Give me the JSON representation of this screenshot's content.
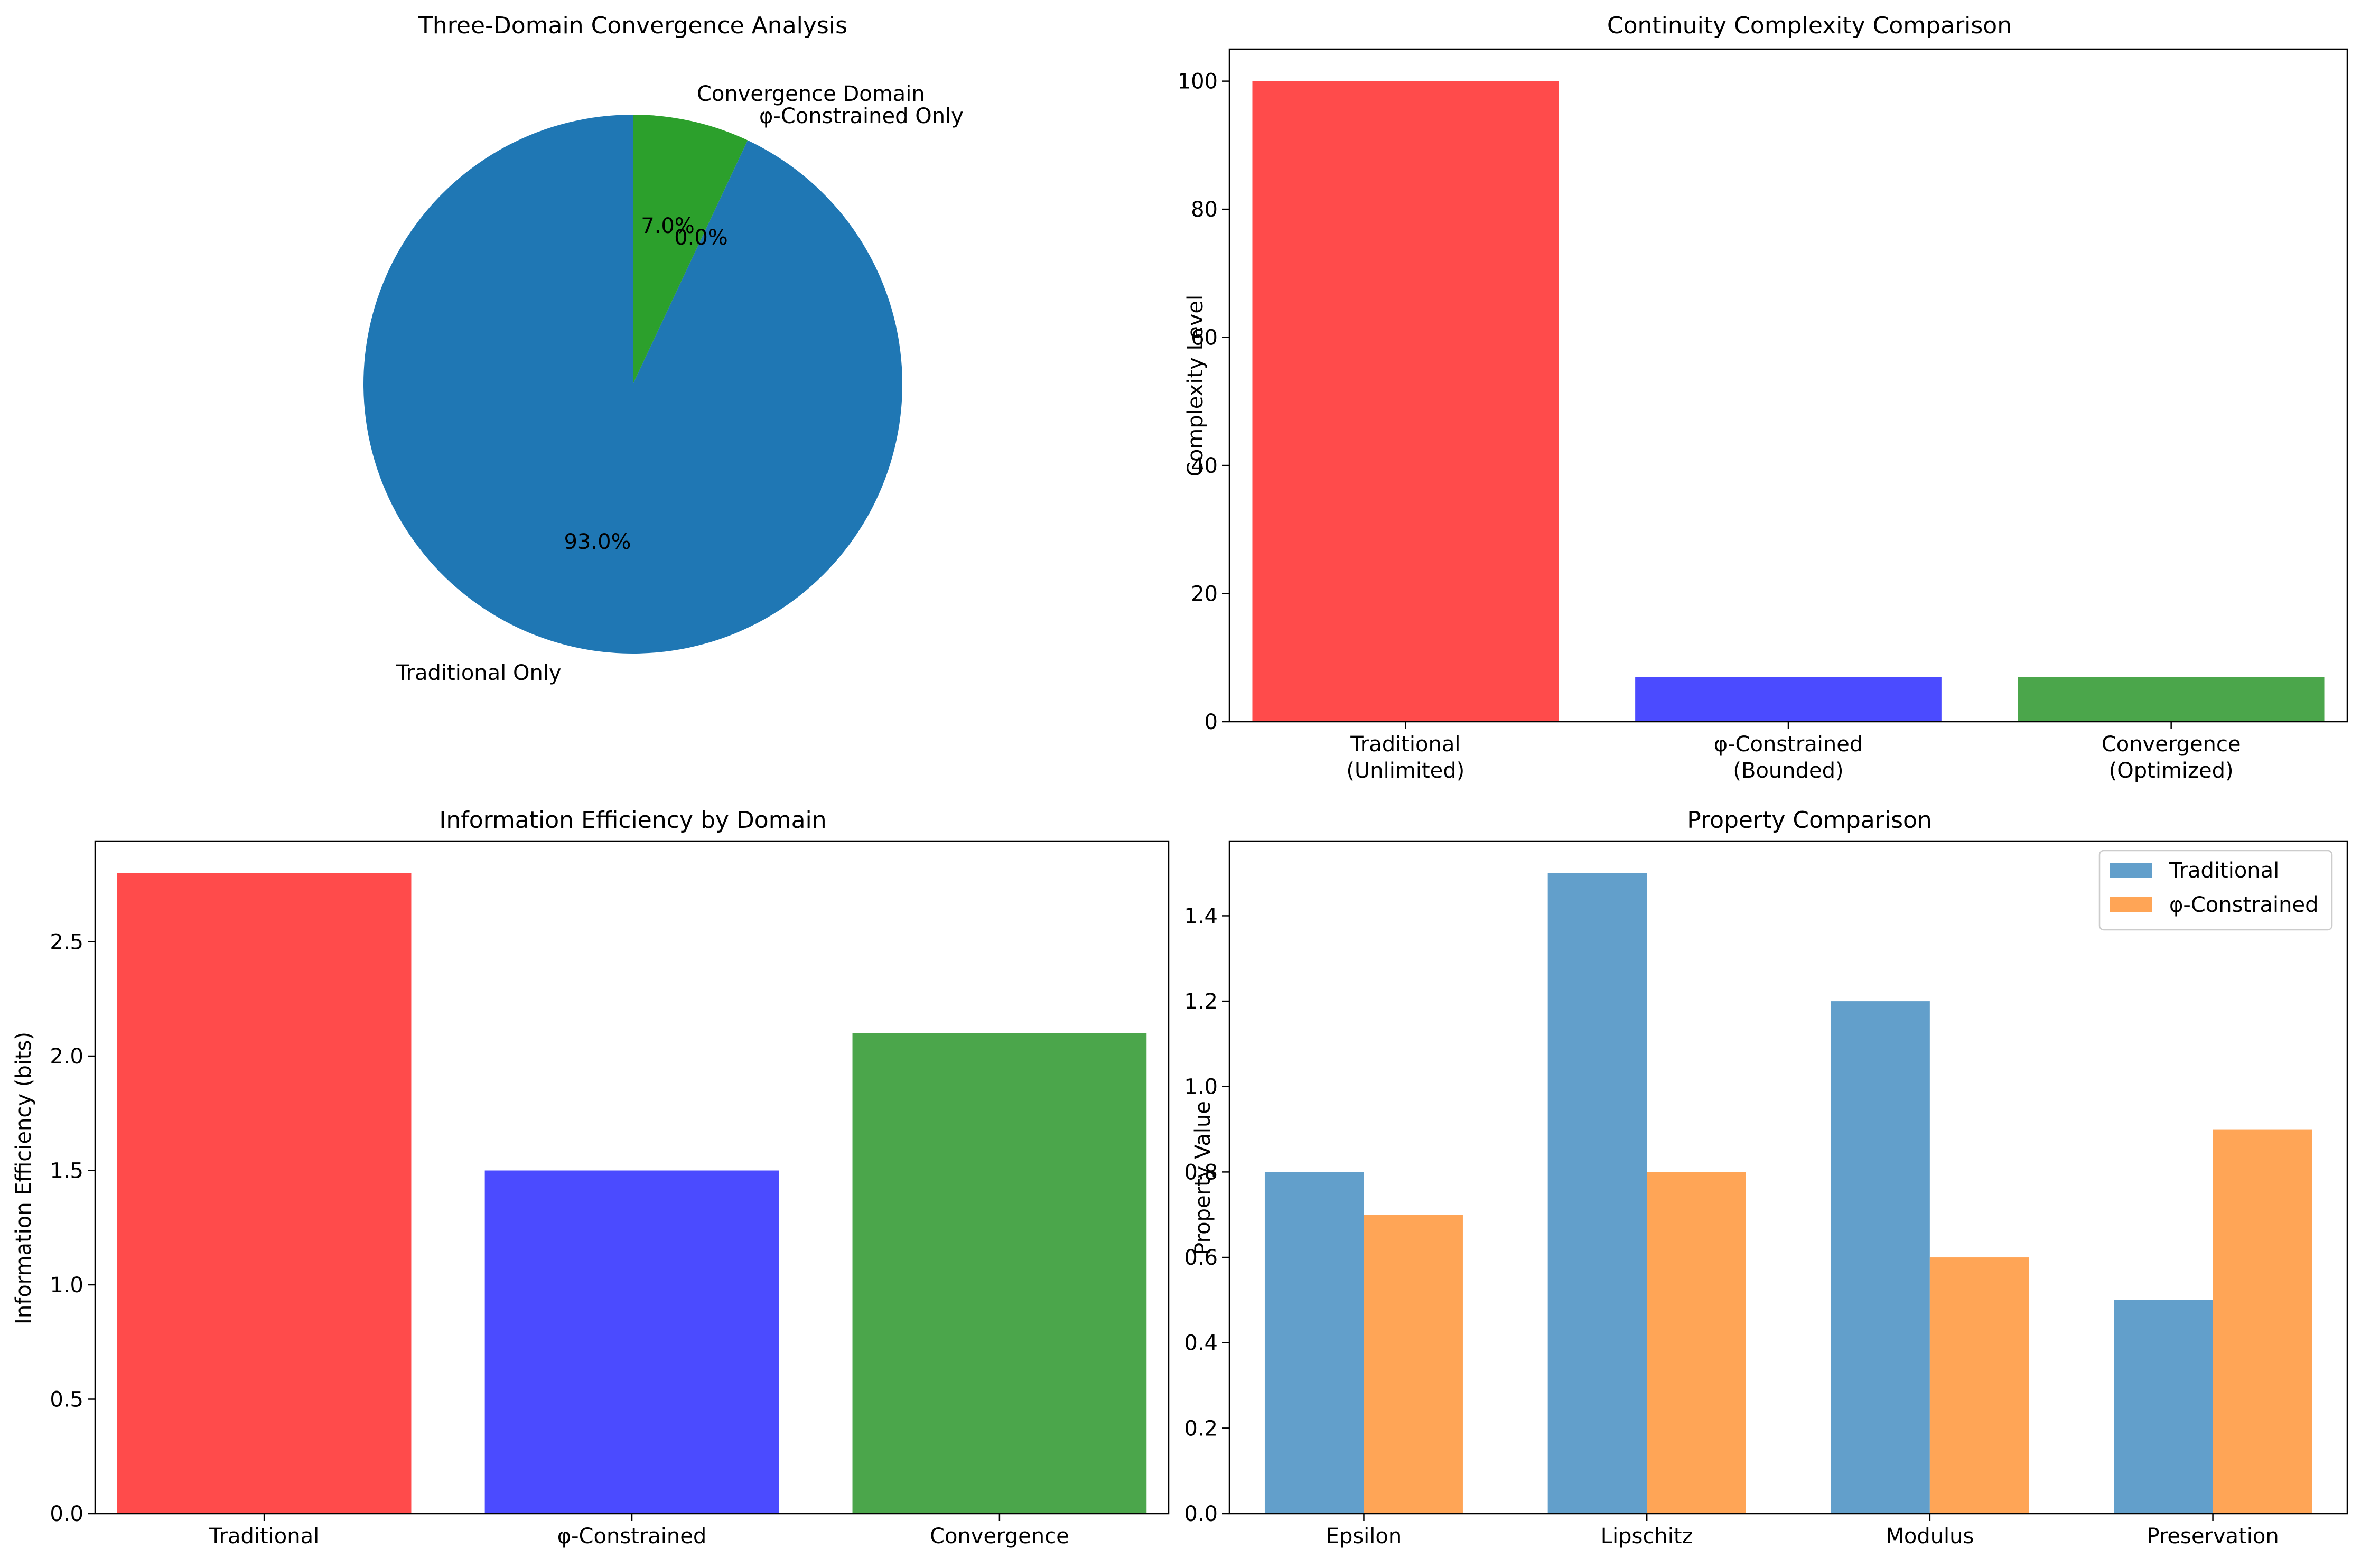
{
  "chart_data": [
    {
      "type": "pie",
      "title": "Three-Domain Convergence Analysis",
      "labels": [
        "Traditional Only",
        "φ-Constrained Only",
        "Convergence Domain"
      ],
      "values": [
        93.0,
        0.0,
        7.0
      ],
      "pct_labels": [
        "93.0%",
        "0.0%",
        "7.0%"
      ],
      "colors": [
        "#1f77b4",
        "#ff7f0e",
        "#2ca02c"
      ]
    },
    {
      "type": "bar",
      "title": "Continuity Complexity Comparison",
      "categories": [
        [
          "Traditional",
          "(Unlimited)"
        ],
        [
          "φ-Constrained",
          "(Bounded)"
        ],
        [
          "Convergence",
          "(Optimized)"
        ]
      ],
      "values": [
        100,
        7,
        7
      ],
      "colors": [
        "#ff4b4b",
        "#4b4bff",
        "#4ba64b"
      ],
      "xlabel": "",
      "ylabel": "Complexity Level",
      "ylim": [
        0,
        105
      ],
      "yticks": [
        0,
        20,
        40,
        60,
        80,
        100
      ],
      "ytick_labels": [
        "0",
        "20",
        "40",
        "60",
        "80",
        "100"
      ]
    },
    {
      "type": "bar",
      "title": "Information Efficiency by Domain",
      "categories": [
        [
          "Traditional"
        ],
        [
          "φ-Constrained"
        ],
        [
          "Convergence"
        ]
      ],
      "values": [
        2.8,
        1.5,
        2.1
      ],
      "colors": [
        "#ff4b4b",
        "#4b4bff",
        "#4ba64b"
      ],
      "xlabel": "",
      "ylabel": "Information Efficiency (bits)",
      "ylim": [
        0,
        2.94
      ],
      "yticks": [
        0,
        0.5,
        1.0,
        1.5,
        2.0,
        2.5
      ],
      "ytick_labels": [
        "0.0",
        "0.5",
        "1.0",
        "1.5",
        "2.0",
        "2.5"
      ]
    },
    {
      "type": "bar",
      "title": "Property Comparison",
      "categories": [
        "Epsilon",
        "Lipschitz",
        "Modulus",
        "Preservation"
      ],
      "series": [
        {
          "name": "Traditional",
          "values": [
            0.8,
            1.5,
            1.2,
            0.5
          ],
          "color": "#629fcb"
        },
        {
          "name": "φ-Constrained",
          "values": [
            0.7,
            0.8,
            0.6,
            0.9
          ],
          "color": "#ffa556"
        }
      ],
      "xlabel": "",
      "ylabel": "Property Value",
      "ylim": [
        0,
        1.575
      ],
      "yticks": [
        0,
        0.2,
        0.4,
        0.6,
        0.8,
        1.0,
        1.2,
        1.4
      ],
      "ytick_labels": [
        "0.0",
        "0.2",
        "0.4",
        "0.6",
        "0.8",
        "1.0",
        "1.2",
        "1.4"
      ],
      "legend": "top-right"
    }
  ]
}
